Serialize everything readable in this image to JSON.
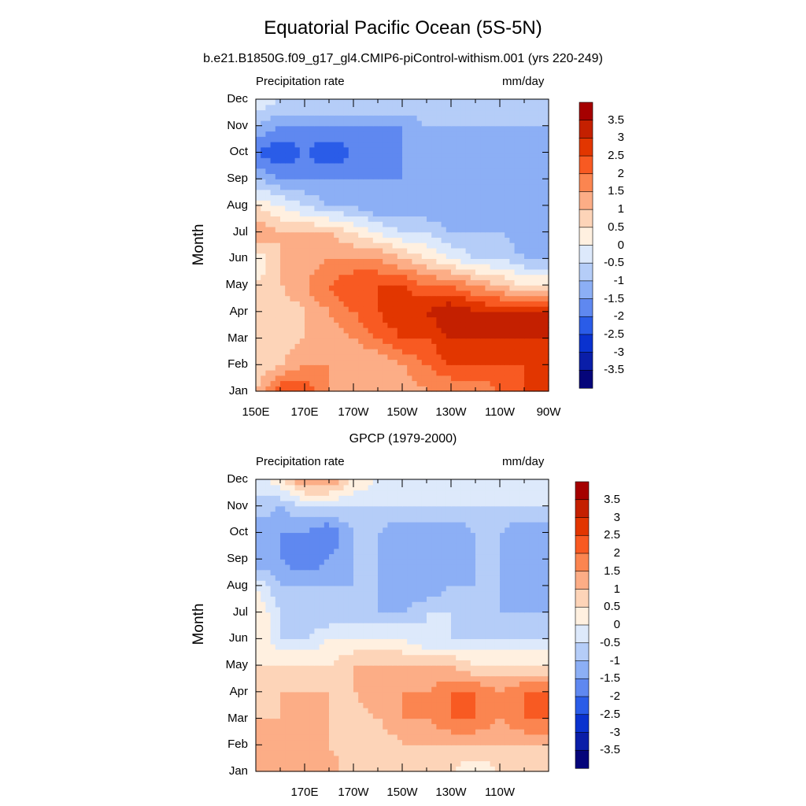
{
  "title": "Equatorial Pacific Ocean (5S-5N)",
  "colorbar": {
    "labels": [
      "3.5",
      "3",
      "2.5",
      "2",
      "1.5",
      "1",
      "0.5",
      "0",
      "-0.5",
      "-1",
      "-1.5",
      "-2",
      "-2.5",
      "-3",
      "-3.5"
    ],
    "colors": [
      "#a50000",
      "#c42000",
      "#e23600",
      "#f85a22",
      "#fb8550",
      "#fcad86",
      "#fdd4b8",
      "#fff0e0",
      "#dde9fb",
      "#b5cdf8",
      "#8caff5",
      "#5f88f0",
      "#2a5ce8",
      "#0a32cf",
      "#0a1ea8",
      "#05057a"
    ]
  },
  "chart_data": [
    {
      "type": "heatmap",
      "title": "b.e21.B1850G.f09_g17_gl4.CMIP6-piControl-withism.001 (yrs 220-249)",
      "left_label": "Precipitation rate",
      "right_label": "mm/day",
      "ylabel": "Month",
      "yticks": [
        "Jan",
        "Feb",
        "Mar",
        "Apr",
        "May",
        "Jun",
        "Jul",
        "Aug",
        "Sep",
        "Oct",
        "Nov",
        "Dec"
      ],
      "xticks": [
        "150E",
        "170E",
        "170W",
        "150W",
        "130W",
        "110W",
        "90W"
      ],
      "xlim": [
        "150E",
        "90W"
      ],
      "ylim": [
        "Jan",
        "Dec"
      ],
      "x_lon": [
        150,
        160,
        170,
        180,
        190,
        200,
        210,
        220,
        230,
        240,
        250,
        260,
        270
      ],
      "month_values": [
        [
          1.0,
          2.5,
          2.5,
          1.5,
          1.0,
          1.0,
          1.0,
          1.5,
          1.5,
          1.5,
          2.0,
          2.5,
          2.5
        ],
        [
          0.5,
          1.0,
          1.5,
          1.5,
          1.0,
          1.0,
          1.5,
          2.0,
          2.5,
          2.5,
          2.5,
          2.5,
          2.5
        ],
        [
          0.5,
          0.5,
          1.0,
          1.0,
          1.5,
          2.0,
          2.5,
          2.5,
          3.0,
          3.0,
          3.0,
          3.0,
          3.0
        ],
        [
          0.5,
          0.5,
          1.0,
          1.5,
          2.0,
          2.5,
          3.0,
          3.0,
          3.5,
          3.0,
          3.0,
          3.0,
          3.0
        ],
        [
          0.5,
          1.0,
          1.5,
          2.0,
          2.5,
          2.5,
          2.5,
          2.0,
          2.0,
          1.5,
          1.0,
          0.5,
          0.5
        ],
        [
          0.0,
          1.0,
          1.0,
          1.5,
          1.5,
          1.5,
          1.0,
          0.5,
          0.0,
          -0.5,
          -0.5,
          -1.0,
          -1.0
        ],
        [
          1.5,
          1.0,
          1.0,
          1.0,
          0.5,
          0.0,
          -0.5,
          -0.5,
          -1.0,
          -1.0,
          -1.0,
          -1.5,
          -1.5
        ],
        [
          0.5,
          0.0,
          -0.5,
          -1.0,
          -1.0,
          -1.5,
          -1.5,
          -1.5,
          -1.5,
          -1.5,
          -1.5,
          -1.5,
          -1.5
        ],
        [
          -1.0,
          -1.5,
          -1.5,
          -1.5,
          -1.5,
          -1.5,
          -1.5,
          -1.5,
          -1.5,
          -1.5,
          -1.5,
          -1.5,
          -1.5
        ],
        [
          -2.0,
          -2.5,
          -2.0,
          -2.5,
          -2.0,
          -2.0,
          -1.5,
          -1.5,
          -1.5,
          -1.5,
          -1.5,
          -1.5,
          -1.5
        ],
        [
          -1.0,
          -1.5,
          -1.5,
          -1.5,
          -1.5,
          -1.5,
          -1.5,
          -1.0,
          -1.0,
          -1.0,
          -1.0,
          -1.0,
          -1.0
        ],
        [
          0.0,
          -0.5,
          -0.5,
          -0.5,
          -0.5,
          -0.5,
          -0.5,
          -0.5,
          -0.5,
          -0.5,
          -0.5,
          -0.5,
          -0.5
        ]
      ]
    },
    {
      "type": "heatmap",
      "title": "GPCP (1979-2000)",
      "left_label": "Precipitation rate",
      "right_label": "mm/day",
      "ylabel": "Month",
      "yticks": [
        "Jan",
        "Feb",
        "Mar",
        "Apr",
        "May",
        "Jun",
        "Jul",
        "Aug",
        "Sep",
        "Oct",
        "Nov",
        "Dec"
      ],
      "xticks": [
        "170E",
        "170W",
        "150W",
        "130W",
        "110W"
      ],
      "xlim": [
        "150E",
        "90W"
      ],
      "ylim": [
        "Jan",
        "Dec"
      ],
      "x_lon": [
        150,
        160,
        170,
        180,
        190,
        200,
        210,
        220,
        230,
        240,
        250,
        260,
        270
      ],
      "month_values": [
        [
          1.0,
          1.0,
          1.5,
          1.5,
          0.5,
          0.5,
          0.5,
          0.5,
          0.5,
          0.0,
          0.5,
          0.5,
          0.5
        ],
        [
          1.0,
          1.0,
          1.5,
          1.0,
          0.5,
          0.5,
          1.0,
          1.0,
          1.0,
          1.0,
          1.0,
          1.0,
          1.0
        ],
        [
          1.0,
          1.0,
          1.5,
          1.0,
          0.5,
          1.0,
          1.5,
          1.5,
          2.0,
          2.0,
          1.5,
          2.0,
          2.0
        ],
        [
          0.5,
          1.0,
          1.0,
          1.0,
          1.0,
          1.5,
          1.5,
          1.5,
          2.0,
          2.0,
          1.5,
          2.0,
          2.0
        ],
        [
          0.5,
          0.5,
          0.5,
          0.5,
          1.0,
          1.0,
          1.0,
          1.0,
          1.0,
          0.5,
          0.5,
          0.5,
          0.5
        ],
        [
          0.5,
          -0.5,
          -0.5,
          0.0,
          0.0,
          0.0,
          0.0,
          -0.5,
          -0.5,
          -0.5,
          -0.5,
          -0.5,
          -0.5
        ],
        [
          0.5,
          -0.5,
          -1.0,
          -1.0,
          -1.0,
          -1.0,
          -1.0,
          -0.5,
          -0.5,
          -1.0,
          -1.0,
          -1.0,
          -1.0
        ],
        [
          0.0,
          -1.0,
          -1.0,
          -1.0,
          -1.0,
          -1.0,
          -1.5,
          -1.5,
          -1.0,
          -1.0,
          -1.0,
          -1.5,
          -1.5
        ],
        [
          -1.5,
          -1.5,
          -2.0,
          -1.5,
          -1.0,
          -1.0,
          -1.5,
          -1.5,
          -1.5,
          -1.0,
          -1.0,
          -1.5,
          -1.5
        ],
        [
          -1.5,
          -1.5,
          -1.5,
          -2.0,
          -1.0,
          -1.0,
          -1.5,
          -1.5,
          -1.5,
          -1.0,
          -1.0,
          -1.5,
          -1.5
        ],
        [
          -0.5,
          -1.0,
          -0.5,
          -0.5,
          -0.5,
          -0.5,
          -0.5,
          -0.5,
          -0.5,
          -0.5,
          -0.5,
          -0.5,
          -0.5
        ],
        [
          -0.5,
          0.5,
          1.5,
          1.5,
          0.5,
          0.0,
          -0.5,
          -0.5,
          -0.5,
          -0.5,
          -0.5,
          -0.5,
          -0.5
        ]
      ]
    }
  ]
}
